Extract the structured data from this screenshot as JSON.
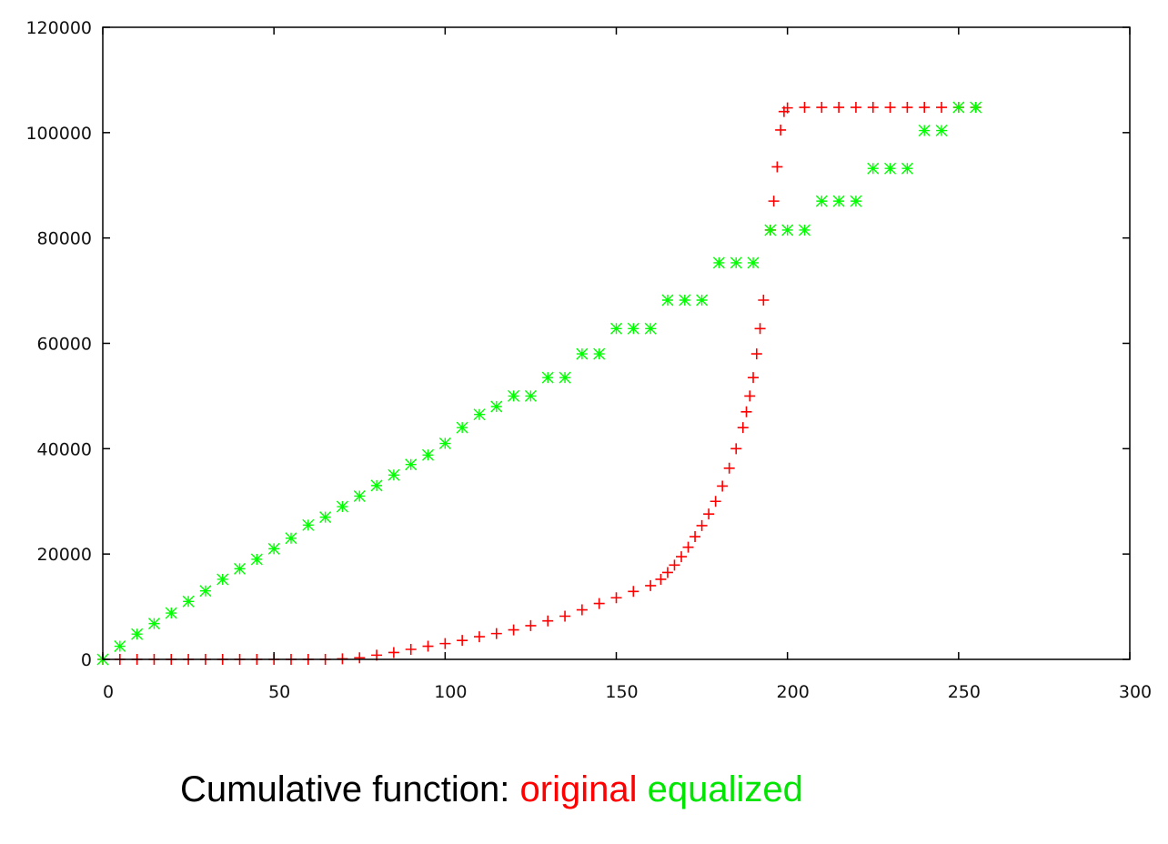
{
  "chart_data": {
    "type": "scatter",
    "xlim": [
      0,
      300
    ],
    "ylim": [
      0,
      120000
    ],
    "x_ticks": [
      0,
      50,
      100,
      150,
      200,
      250,
      300
    ],
    "y_ticks": [
      0,
      20000,
      40000,
      60000,
      80000,
      100000,
      120000
    ],
    "x_tick_labels": [
      "0",
      "50",
      "100",
      "150",
      "200",
      "250",
      "300"
    ],
    "y_tick_labels": [
      "0",
      "20000",
      "40000",
      "60000",
      "80000",
      "100000",
      "120000"
    ],
    "grid": false,
    "series": [
      {
        "name": "original",
        "color": "#ff0000",
        "marker": "plus",
        "points": [
          [
            0,
            0
          ],
          [
            5,
            0
          ],
          [
            10,
            0
          ],
          [
            15,
            0
          ],
          [
            20,
            0
          ],
          [
            25,
            0
          ],
          [
            30,
            0
          ],
          [
            35,
            0
          ],
          [
            40,
            0
          ],
          [
            45,
            0
          ],
          [
            50,
            0
          ],
          [
            55,
            0
          ],
          [
            60,
            0
          ],
          [
            65,
            0
          ],
          [
            70,
            100
          ],
          [
            75,
            300
          ],
          [
            80,
            800
          ],
          [
            85,
            1300
          ],
          [
            90,
            1900
          ],
          [
            95,
            2500
          ],
          [
            100,
            3000
          ],
          [
            105,
            3600
          ],
          [
            110,
            4300
          ],
          [
            115,
            4900
          ],
          [
            120,
            5600
          ],
          [
            125,
            6400
          ],
          [
            130,
            7300
          ],
          [
            135,
            8200
          ],
          [
            140,
            9400
          ],
          [
            145,
            10600
          ],
          [
            150,
            11700
          ],
          [
            155,
            12900
          ],
          [
            160,
            14000
          ],
          [
            163,
            15200
          ],
          [
            165,
            16500
          ],
          [
            167,
            17900
          ],
          [
            169,
            19500
          ],
          [
            171,
            21300
          ],
          [
            173,
            23300
          ],
          [
            175,
            25400
          ],
          [
            177,
            27600
          ],
          [
            179,
            30000
          ],
          [
            181,
            32900
          ],
          [
            183,
            36300
          ],
          [
            185,
            40000
          ],
          [
            187,
            44000
          ],
          [
            188,
            47000
          ],
          [
            189,
            50000
          ],
          [
            190,
            53500
          ],
          [
            191,
            58000
          ],
          [
            192,
            62800
          ],
          [
            193,
            68200
          ],
          [
            195,
            81500
          ],
          [
            196,
            87000
          ],
          [
            197,
            93500
          ],
          [
            198,
            100500
          ],
          [
            199,
            104000
          ],
          [
            200,
            104700
          ],
          [
            205,
            104800
          ],
          [
            210,
            104800
          ],
          [
            215,
            104800
          ],
          [
            220,
            104800
          ],
          [
            225,
            104800
          ],
          [
            230,
            104800
          ],
          [
            235,
            104800
          ],
          [
            240,
            104800
          ],
          [
            245,
            104800
          ],
          [
            250,
            104800
          ],
          [
            255,
            104800
          ]
        ]
      },
      {
        "name": "equalized",
        "color": "#00ff00",
        "marker": "star",
        "points": [
          [
            0,
            0
          ],
          [
            5,
            2500
          ],
          [
            10,
            4800
          ],
          [
            15,
            6800
          ],
          [
            20,
            8800
          ],
          [
            25,
            11000
          ],
          [
            30,
            13000
          ],
          [
            35,
            15200
          ],
          [
            40,
            17200
          ],
          [
            45,
            19000
          ],
          [
            50,
            21000
          ],
          [
            55,
            23000
          ],
          [
            60,
            25500
          ],
          [
            65,
            27000
          ],
          [
            70,
            29000
          ],
          [
            75,
            31000
          ],
          [
            80,
            33000
          ],
          [
            85,
            35000
          ],
          [
            90,
            37000
          ],
          [
            95,
            38800
          ],
          [
            100,
            41000
          ],
          [
            105,
            44000
          ],
          [
            110,
            46500
          ],
          [
            115,
            48000
          ],
          [
            120,
            50000
          ],
          [
            125,
            50000
          ],
          [
            130,
            53500
          ],
          [
            135,
            53500
          ],
          [
            140,
            58000
          ],
          [
            145,
            58000
          ],
          [
            150,
            62800
          ],
          [
            155,
            62800
          ],
          [
            160,
            62800
          ],
          [
            165,
            68200
          ],
          [
            170,
            68200
          ],
          [
            175,
            68200
          ],
          [
            180,
            75300
          ],
          [
            185,
            75300
          ],
          [
            190,
            75300
          ],
          [
            195,
            81500
          ],
          [
            200,
            81500
          ],
          [
            205,
            81500
          ],
          [
            210,
            87000
          ],
          [
            215,
            87000
          ],
          [
            220,
            87000
          ],
          [
            225,
            93200
          ],
          [
            230,
            93200
          ],
          [
            235,
            93200
          ],
          [
            240,
            100400
          ],
          [
            245,
            100400
          ],
          [
            250,
            104800
          ],
          [
            255,
            104800
          ]
        ]
      }
    ]
  },
  "caption": {
    "prefix": "Cumulative function: ",
    "original_label": "original",
    "separator": " ",
    "equalized_label": "equalized"
  }
}
